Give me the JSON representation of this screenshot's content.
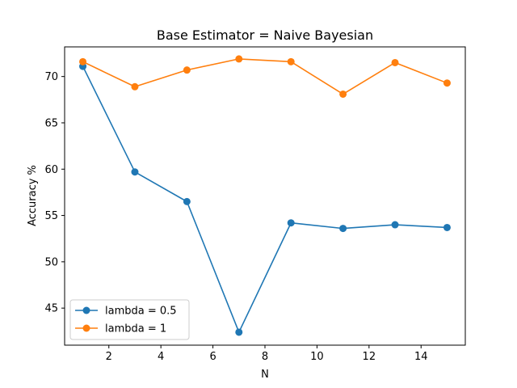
{
  "chart_data": {
    "type": "line",
    "title": "Base Estimator = Naive Bayesian",
    "xlabel": "N",
    "ylabel": "Accuracy %",
    "x": [
      1,
      3,
      5,
      7,
      9,
      11,
      13,
      15
    ],
    "xlim": [
      0.3,
      15.7
    ],
    "ylim": [
      41.0,
      73.2
    ],
    "xticks": [
      2,
      4,
      6,
      8,
      10,
      12,
      14
    ],
    "yticks": [
      45,
      50,
      55,
      60,
      65,
      70
    ],
    "grid": false,
    "legend_position": "lower-left",
    "series": [
      {
        "name": "lambda = 0.5",
        "color": "#1f77b4",
        "values": [
          71.1,
          59.7,
          56.5,
          42.4,
          54.2,
          53.6,
          54.0,
          53.7
        ]
      },
      {
        "name": "lambda = 1",
        "color": "#ff7f0e",
        "values": [
          71.6,
          68.9,
          70.7,
          71.9,
          71.6,
          68.1,
          71.5,
          69.3
        ]
      }
    ]
  }
}
